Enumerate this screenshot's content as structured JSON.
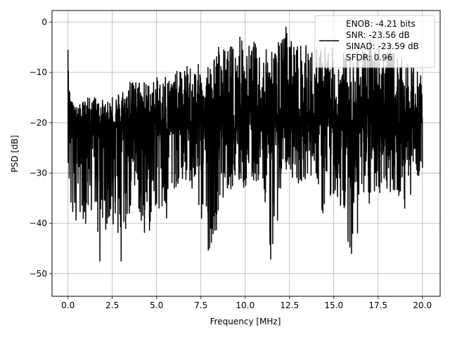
{
  "chart_data": {
    "type": "line",
    "title": "",
    "xlabel": "Frequency [MHz]",
    "ylabel": "PSD [dB]",
    "xlim": [
      -0.9,
      21.0
    ],
    "ylim": [
      -54.5,
      2.3
    ],
    "xticks": [
      0.0,
      2.5,
      5.0,
      7.5,
      10.0,
      12.5,
      15.0,
      17.5,
      20.0
    ],
    "xtick_labels": [
      "0.0",
      "2.5",
      "5.0",
      "7.5",
      "10.0",
      "12.5",
      "15.0",
      "17.5",
      "20.0"
    ],
    "yticks": [
      0,
      -10,
      -20,
      -30,
      -40,
      -50
    ],
    "ytick_labels": [
      "0",
      "−10",
      "−20",
      "−30",
      "−40",
      "−50"
    ],
    "grid": true,
    "legend_position": "top-right",
    "legend_lines": [
      "ENOB: -4.21 bits",
      "SNR: -23.56 dB",
      "SINAD: -23.59 dB",
      "SFDR: 0.96"
    ],
    "series": [
      {
        "color": "#000000",
        "x_range": [
          0.0,
          20.0
        ],
        "envelope": [
          {
            "x": 0.0,
            "upper": -5.5,
            "lower": -27
          },
          {
            "x": 0.1,
            "upper": -14,
            "lower": -40
          },
          {
            "x": 0.25,
            "upper": -16,
            "lower": -46
          },
          {
            "x": 0.5,
            "upper": -17,
            "lower": -38
          },
          {
            "x": 1.0,
            "upper": -15,
            "lower": -40
          },
          {
            "x": 1.5,
            "upper": -15,
            "lower": -37
          },
          {
            "x": 1.8,
            "upper": -15,
            "lower": -47.5
          },
          {
            "x": 2.2,
            "upper": -16,
            "lower": -40
          },
          {
            "x": 2.5,
            "upper": -15,
            "lower": -41
          },
          {
            "x": 3.0,
            "upper": -13,
            "lower": -47.5
          },
          {
            "x": 3.5,
            "upper": -12,
            "lower": -39
          },
          {
            "x": 4.0,
            "upper": -11,
            "lower": -37
          },
          {
            "x": 4.3,
            "upper": -12,
            "lower": -48
          },
          {
            "x": 5.0,
            "upper": -11,
            "lower": -36
          },
          {
            "x": 5.5,
            "upper": -11,
            "lower": -45
          },
          {
            "x": 6.0,
            "upper": -10,
            "lower": -33
          },
          {
            "x": 7.0,
            "upper": -8,
            "lower": -33
          },
          {
            "x": 7.9,
            "upper": -9,
            "lower": -46
          },
          {
            "x": 8.5,
            "upper": -5,
            "lower": -40
          },
          {
            "x": 9.0,
            "upper": -5,
            "lower": -33
          },
          {
            "x": 9.7,
            "upper": -3,
            "lower": -34
          },
          {
            "x": 10.5,
            "upper": -4,
            "lower": -33
          },
          {
            "x": 11.0,
            "upper": -5,
            "lower": -31
          },
          {
            "x": 11.5,
            "upper": -6,
            "lower": -51.5
          },
          {
            "x": 12.0,
            "upper": -3,
            "lower": -33
          },
          {
            "x": 12.3,
            "upper": -1,
            "lower": -30
          },
          {
            "x": 13.0,
            "upper": -4,
            "lower": -32
          },
          {
            "x": 14.0,
            "upper": -5,
            "lower": -30
          },
          {
            "x": 14.5,
            "upper": -5,
            "lower": -44
          },
          {
            "x": 15.0,
            "upper": -5,
            "lower": -34
          },
          {
            "x": 16.0,
            "upper": -6,
            "lower": -46
          },
          {
            "x": 17.0,
            "upper": -3,
            "lower": -36
          },
          {
            "x": 18.0,
            "upper": -4,
            "lower": -33
          },
          {
            "x": 19.0,
            "upper": -8,
            "lower": -37
          },
          {
            "x": 19.5,
            "upper": -9,
            "lower": -33
          },
          {
            "x": 20.0,
            "upper": -10,
            "lower": -29
          }
        ],
        "center_db": -20
      }
    ]
  }
}
